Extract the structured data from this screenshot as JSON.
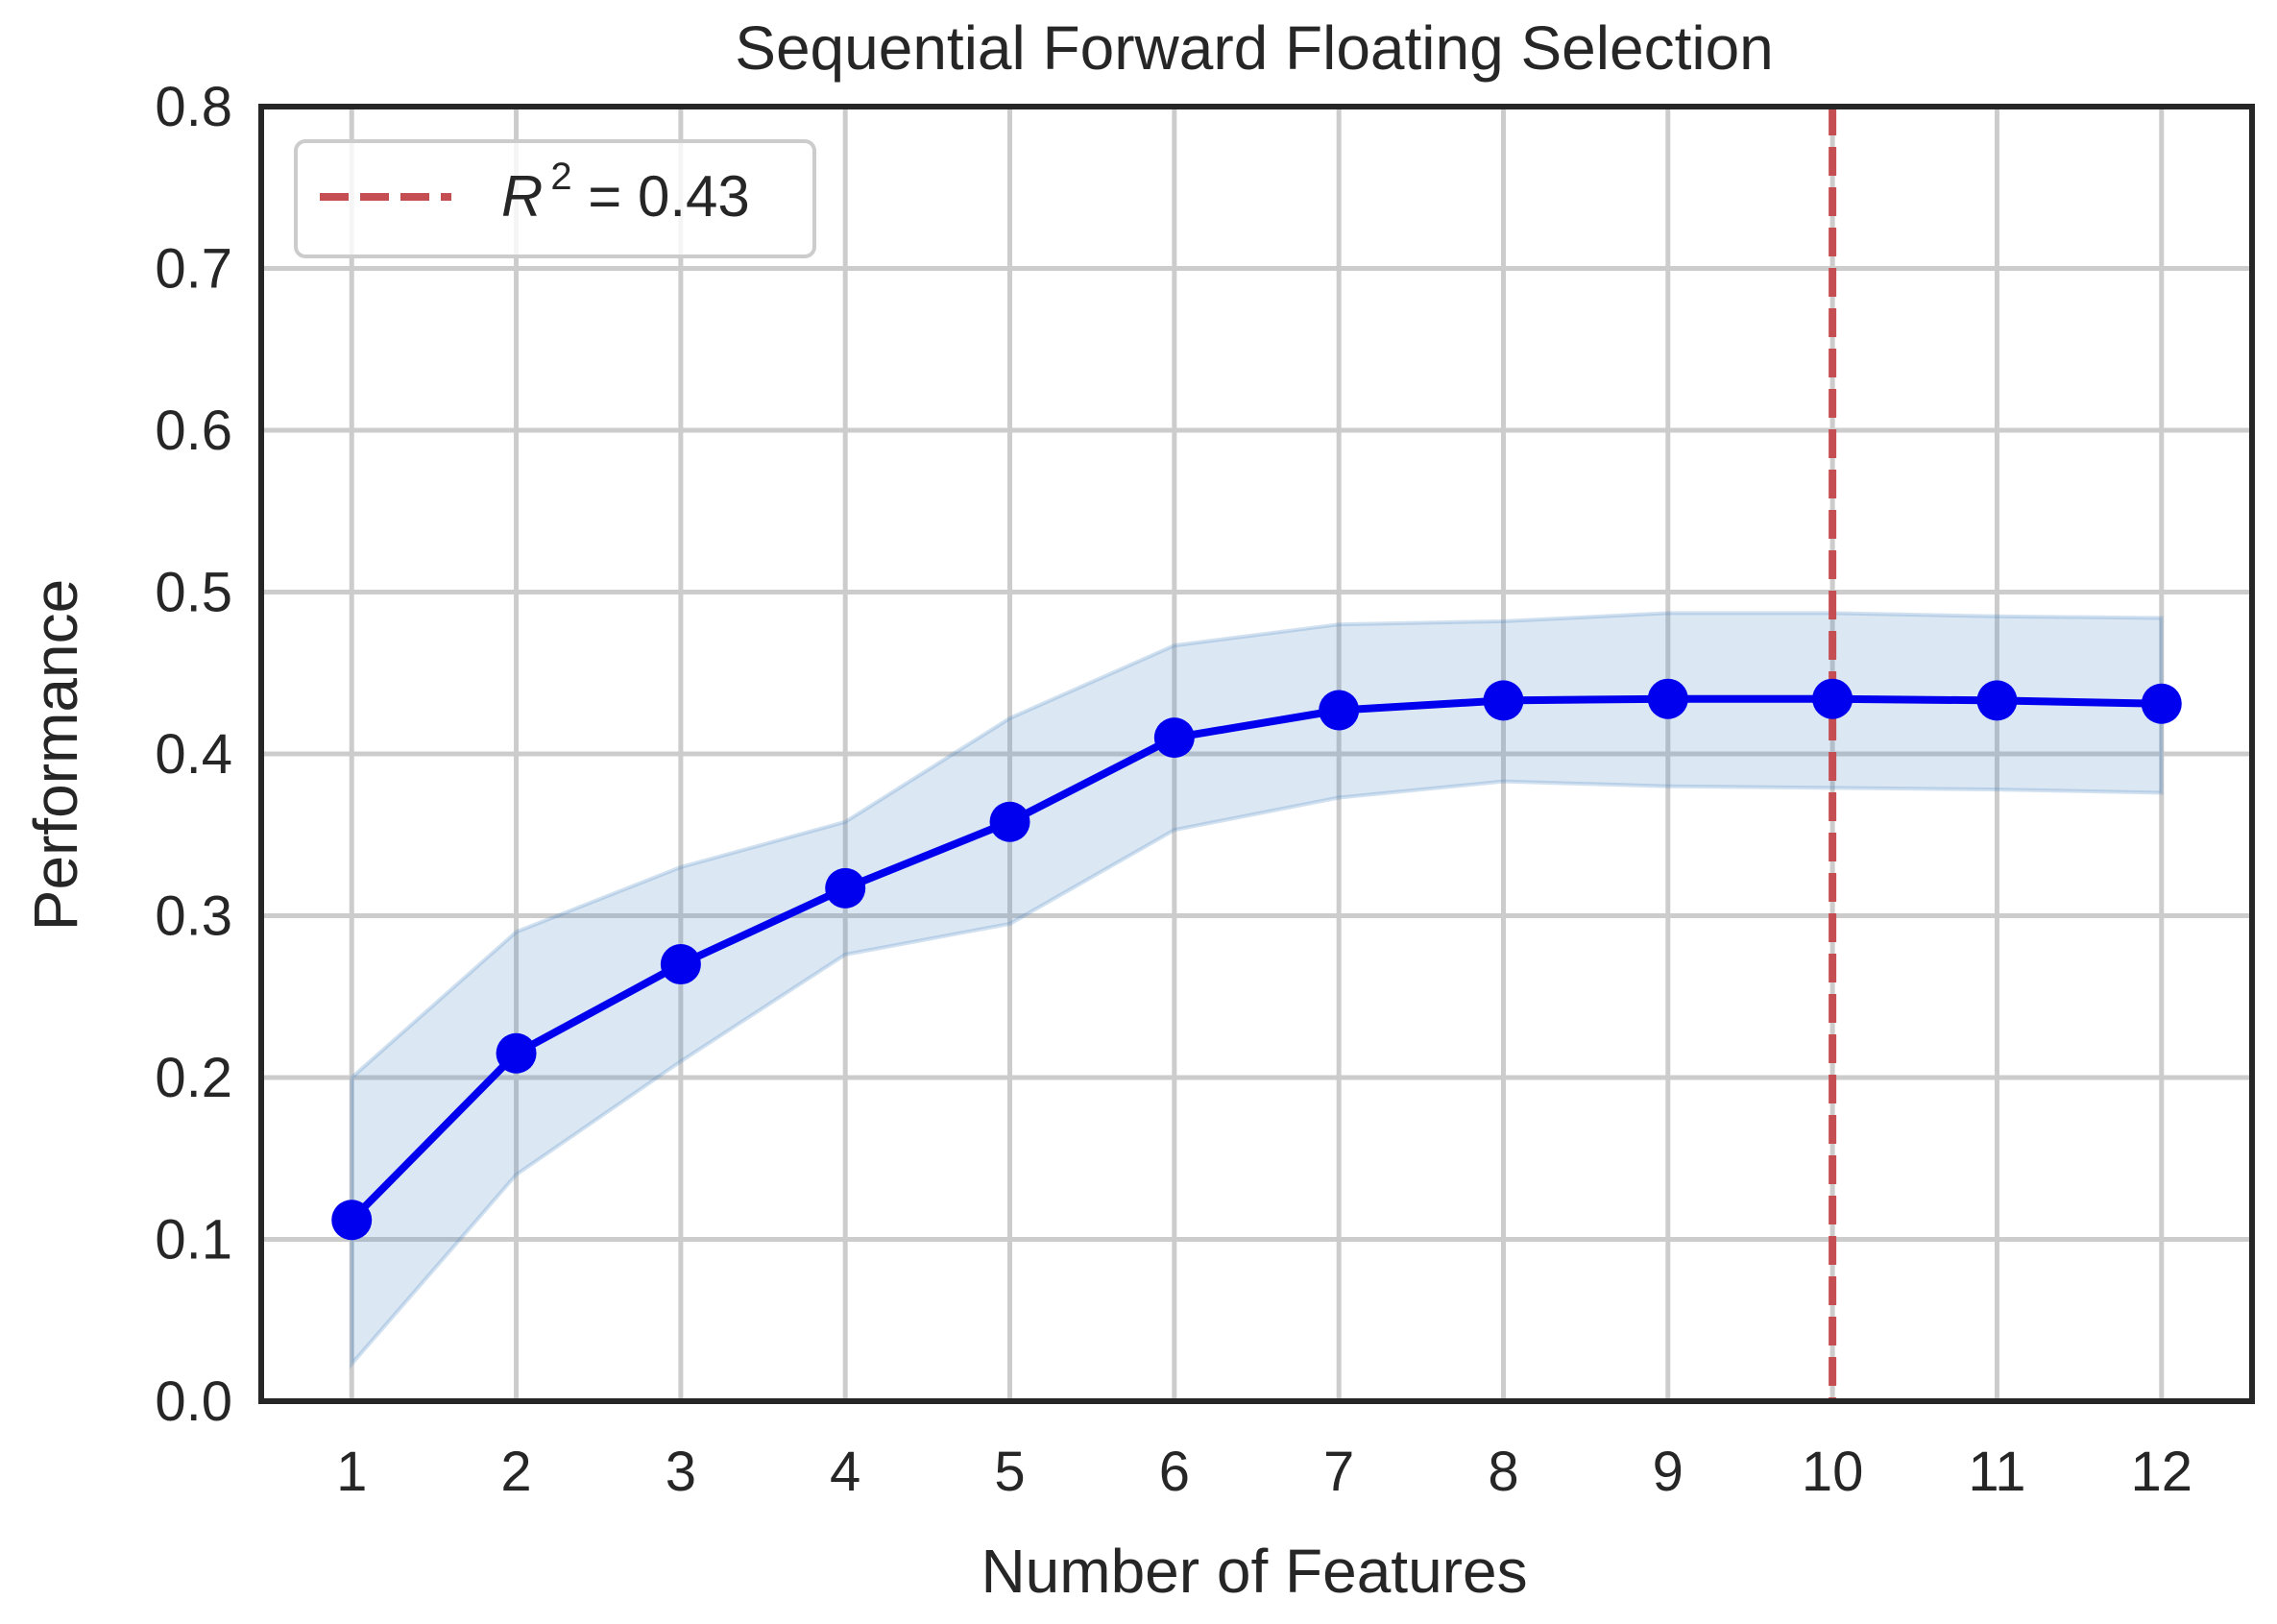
{
  "chart_data": {
    "type": "line",
    "title": "Sequential Forward Floating Selection",
    "xlabel": "Number of Features",
    "ylabel": "Performance",
    "x": [
      1,
      2,
      3,
      4,
      5,
      6,
      7,
      8,
      9,
      10,
      11,
      12
    ],
    "xlim": [
      0.45,
      12.55
    ],
    "ylim": [
      0.0,
      0.8
    ],
    "yticks": [
      "0.0",
      "0.1",
      "0.2",
      "0.3",
      "0.4",
      "0.5",
      "0.6",
      "0.7",
      "0.8"
    ],
    "xticks": [
      "1",
      "2",
      "3",
      "4",
      "5",
      "6",
      "7",
      "8",
      "9",
      "10",
      "11",
      "12"
    ],
    "grid": true,
    "series": [
      {
        "values": [
          0.112,
          0.215,
          0.27,
          0.317,
          0.358,
          0.41,
          0.427,
          0.433,
          0.434,
          0.434,
          0.433,
          0.431
        ],
        "band_upper": [
          0.2,
          0.29,
          0.33,
          0.358,
          0.422,
          0.467,
          0.48,
          0.482,
          0.487,
          0.487,
          0.485,
          0.484
        ],
        "band_lower": [
          0.023,
          0.14,
          0.21,
          0.276,
          0.295,
          0.353,
          0.373,
          0.383,
          0.38,
          0.379,
          0.378,
          0.376
        ],
        "color": "#0000ee",
        "band_color": "#4c88c4"
      }
    ],
    "vline": {
      "x": 10,
      "color": "#c44e52",
      "style": "dashed",
      "legend_label": "R² = 0.43",
      "legend_label_parts": {
        "var": "R",
        "sup": "2",
        "rest": " = 0.43"
      }
    },
    "legend_position": "top-left"
  }
}
